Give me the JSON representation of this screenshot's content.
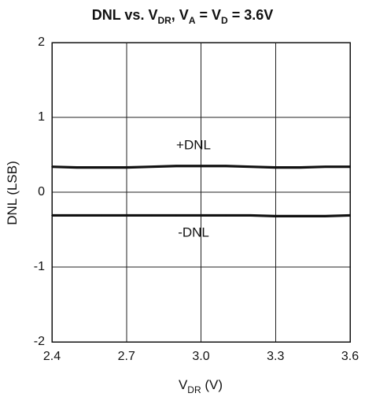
{
  "chart_data": {
    "type": "line",
    "title": {
      "main": "DNL vs. V",
      "sub1": "DR",
      "mid1": ", V",
      "sub2": "A",
      "mid2": " = V",
      "sub3": "D",
      "tail": " = 3.6V"
    },
    "xlabel": {
      "main": "V",
      "sub": "DR",
      "tail": " (V)"
    },
    "ylabel": "DNL (LSB)",
    "xlim": [
      2.4,
      3.6
    ],
    "ylim": [
      -2,
      2
    ],
    "x_ticks": [
      2.4,
      2.7,
      3.0,
      3.3,
      3.6
    ],
    "x_tick_labels": [
      "2.4",
      "2.7",
      "3.0",
      "3.3",
      "3.6"
    ],
    "y_ticks": [
      2,
      1,
      0,
      -1,
      -2
    ],
    "y_tick_labels": [
      "2",
      "1",
      "0",
      "-1",
      "-2"
    ],
    "grid": true,
    "series": [
      {
        "x": [
          2.4,
          2.5,
          2.6,
          2.7,
          2.8,
          2.9,
          3.0,
          3.1,
          3.2,
          3.3,
          3.4,
          3.5,
          3.6
        ],
        "values": [
          0.34,
          0.33,
          0.33,
          0.33,
          0.34,
          0.35,
          0.35,
          0.35,
          0.34,
          0.33,
          0.33,
          0.34,
          0.34
        ]
      },
      {
        "x": [
          2.4,
          2.5,
          2.6,
          2.7,
          2.8,
          2.9,
          3.0,
          3.1,
          3.2,
          3.3,
          3.4,
          3.5,
          3.6
        ],
        "values": [
          -0.31,
          -0.31,
          -0.31,
          -0.31,
          -0.31,
          -0.31,
          -0.31,
          -0.31,
          -0.31,
          -0.32,
          -0.32,
          -0.32,
          -0.31
        ]
      }
    ],
    "annotations": [
      {
        "text": "+DNL",
        "x": 2.97,
        "y": 0.62
      },
      {
        "text": "-DNL",
        "x": 2.97,
        "y": -0.55
      }
    ]
  }
}
